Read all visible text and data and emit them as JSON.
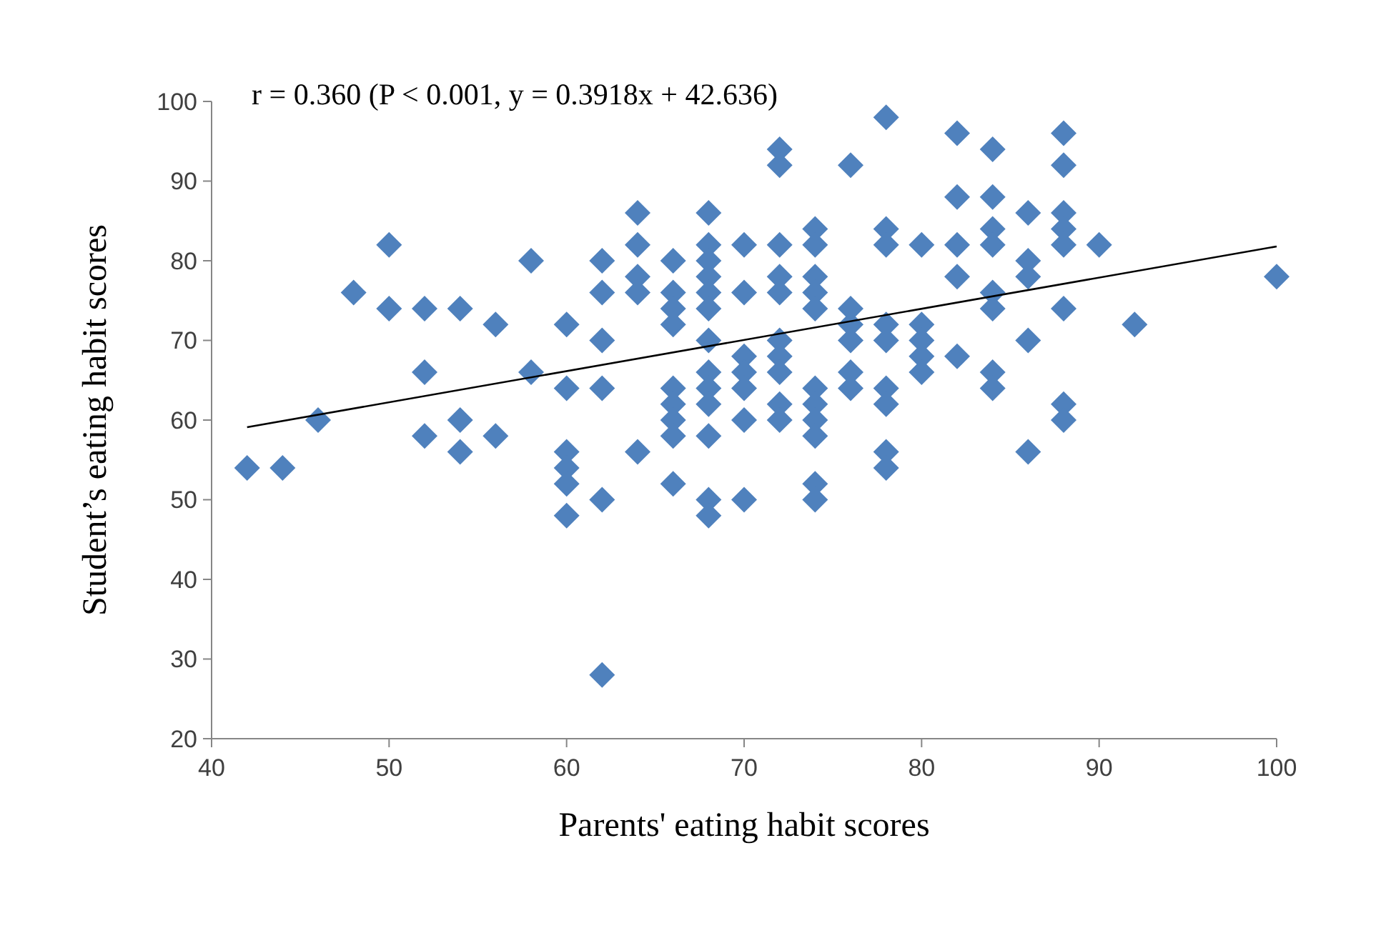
{
  "chart_data": {
    "type": "scatter",
    "xlabel": "Parents' eating habit scores",
    "ylabel": "Student’s eating habit scores",
    "annotations": [
      "r = 0.360 (P < 0.001, y = 0.3918x + 42.636)"
    ],
    "xlim": [
      40,
      100
    ],
    "ylim": [
      20,
      100
    ],
    "xticks": [
      40,
      50,
      60,
      70,
      80,
      90,
      100
    ],
    "yticks": [
      20,
      30,
      40,
      50,
      60,
      70,
      80,
      90,
      100
    ],
    "grid": false,
    "marker": "diamond",
    "series": [
      {
        "color": "#4f81bd",
        "x": [
          42,
          44,
          46,
          48,
          50,
          50,
          52,
          52,
          52,
          54,
          54,
          54,
          56,
          56,
          58,
          58,
          60,
          60,
          60,
          60,
          60,
          60,
          62,
          62,
          62,
          62,
          62,
          62,
          64,
          64,
          64,
          64,
          64,
          66,
          66,
          66,
          66,
          66,
          66,
          66,
          66,
          66,
          68,
          68,
          68,
          68,
          68,
          68,
          68,
          68,
          68,
          68,
          68,
          68,
          68,
          70,
          70,
          70,
          70,
          70,
          70,
          70,
          72,
          72,
          72,
          72,
          72,
          72,
          72,
          72,
          72,
          72,
          74,
          74,
          74,
          74,
          74,
          74,
          74,
          74,
          74,
          74,
          74,
          76,
          76,
          76,
          76,
          76,
          76,
          78,
          78,
          78,
          78,
          78,
          78,
          78,
          78,
          78,
          80,
          80,
          80,
          80,
          80,
          82,
          82,
          82,
          82,
          82,
          84,
          84,
          84,
          84,
          84,
          84,
          84,
          84,
          86,
          86,
          86,
          86,
          86,
          88,
          88,
          88,
          88,
          88,
          88,
          88,
          88,
          90,
          92,
          100
        ],
        "values": [
          54,
          54,
          60,
          76,
          82,
          74,
          74,
          66,
          58,
          74,
          60,
          56,
          72,
          58,
          80,
          66,
          72,
          64,
          56,
          54,
          52,
          48,
          80,
          76,
          70,
          64,
          50,
          28,
          86,
          82,
          78,
          76,
          56,
          80,
          76,
          74,
          72,
          64,
          62,
          60,
          58,
          52,
          86,
          82,
          80,
          78,
          76,
          74,
          70,
          66,
          64,
          62,
          58,
          50,
          48,
          82,
          76,
          68,
          66,
          64,
          60,
          50,
          94,
          92,
          82,
          78,
          76,
          70,
          68,
          66,
          62,
          60,
          84,
          82,
          78,
          76,
          74,
          64,
          62,
          60,
          58,
          52,
          50,
          92,
          74,
          72,
          70,
          66,
          64,
          98,
          84,
          82,
          72,
          70,
          64,
          62,
          56,
          54,
          82,
          72,
          70,
          68,
          66,
          96,
          88,
          82,
          78,
          68,
          94,
          88,
          84,
          82,
          76,
          74,
          66,
          64,
          86,
          80,
          78,
          70,
          56,
          96,
          92,
          86,
          84,
          82,
          74,
          62,
          60,
          82,
          72,
          78
        ]
      },
      {
        "type": "line",
        "color": "#000000",
        "marker": "none",
        "line_style": "solid",
        "x": [
          42,
          100
        ],
        "values": [
          59.1,
          81.8
        ]
      }
    ]
  }
}
